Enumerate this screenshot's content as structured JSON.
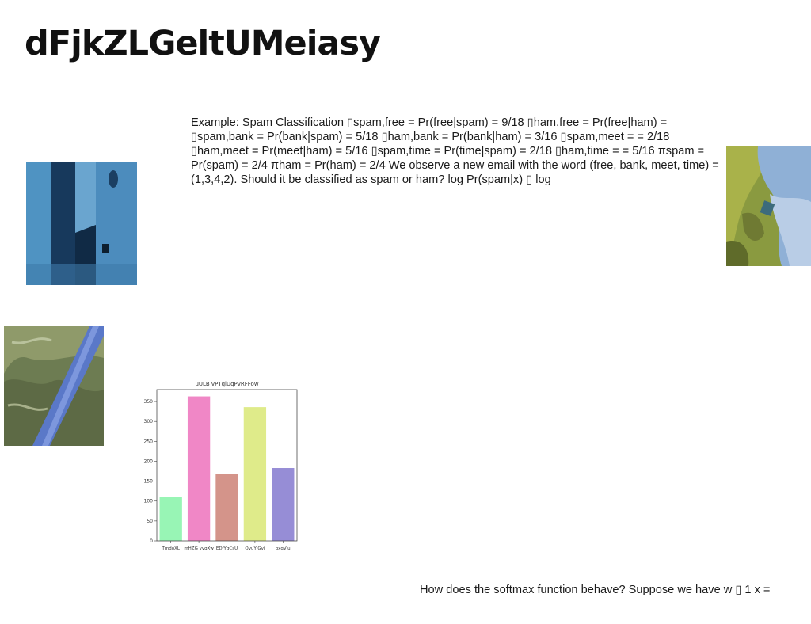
{
  "slide": {
    "title": "dFjkZLGeltUMeiasy",
    "paragraph": "Example: Spam Classification ▯spam,free = Pr(free|spam) = 9/18 ▯ham,free = Pr(free|ham) = ▯spam,bank = Pr(bank|spam) = 5/18 ▯ham,bank = Pr(bank|ham) = 3/16 ▯spam,meet = = 2/18 ▯ham,meet = Pr(meet|ham) = 5/16 ▯spam,time = Pr(time|spam) = 2/18 ▯ham,time = = 5/16 πspam = Pr(spam) = 2/4 πham = Pr(ham) = 2/4 We observe a new email with the word (free, bank, meet, time) = (1,3,4,2). Should it be classified as spam or ham? log Pr(spam|x) ▯ log",
    "footer": "How does the softmax function behave? Suppose we have w ▯ 1 x ="
  },
  "images": [
    {
      "name": "blue-wall-photo"
    },
    {
      "name": "aerial-landscape-photo"
    },
    {
      "name": "blue-pipe-water-photo"
    }
  ],
  "chart_data": {
    "type": "bar",
    "title": "uULB vPTqlUqPvRFFow",
    "categories": [
      "TmdoXL",
      "mHZG yvqXw",
      "EDfYgCsU",
      "QvuYlGvj",
      "oxqVju"
    ],
    "values": [
      110,
      363,
      168,
      336,
      183
    ],
    "colors": [
      "#98f5b5",
      "#f087c6",
      "#d4948a",
      "#dfeb8a",
      "#968dd6"
    ],
    "ylim": [
      0,
      380
    ],
    "yticks": [
      0,
      50,
      100,
      150,
      200,
      250,
      300,
      350
    ],
    "xlabel": "",
    "ylabel": "",
    "grid": false
  }
}
